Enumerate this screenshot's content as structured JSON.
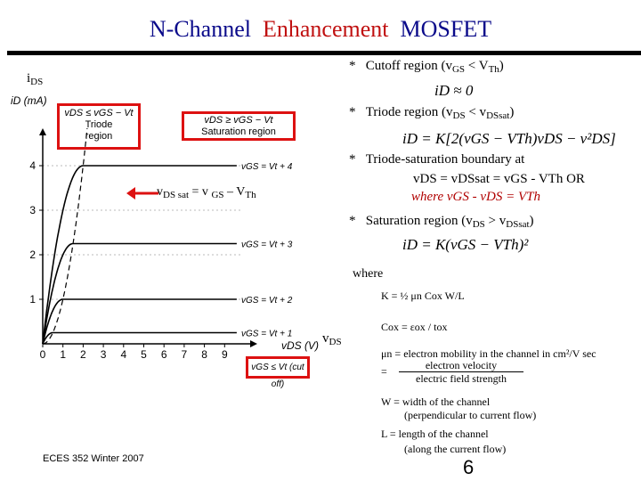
{
  "title": {
    "part1": "N-Channel",
    "part2": "Enhancement",
    "part3": "MOSFET"
  },
  "axis": {
    "y_main": "i",
    "y_main_sub": "DS",
    "y_small": "iD (mA)",
    "x_small": "vDS (V)",
    "x_main": "v",
    "x_main_sub": "DS"
  },
  "chart_data": {
    "type": "line",
    "xlim": [
      0,
      10
    ],
    "ylim": [
      0,
      4.6
    ],
    "x_ticks": [
      "0",
      "1",
      "2",
      "3",
      "4",
      "5",
      "6",
      "7",
      "8",
      "9"
    ],
    "y_ticks": [
      "1",
      "2",
      "3",
      "4"
    ],
    "series": [
      {
        "label": "vGS = Vt + 4",
        "sat": 4
      },
      {
        "label": "vGS = Vt + 3",
        "sat": 2.25
      },
      {
        "label": "vGS = Vt + 2",
        "sat": 1
      },
      {
        "label": "vGS = Vt + 1",
        "sat": 0.25
      }
    ]
  },
  "boxes": {
    "triode": {
      "line1": "vDS ≤ vGS − Vt",
      "line2": "Triode",
      "line3": "region"
    },
    "saturation": {
      "line1": "vDS ≥ vGS − Vt",
      "line2": "Saturation region"
    },
    "cutoff": "vGS ≤ Vt (cut off)"
  },
  "boundary_label": {
    "v1": "v",
    "s1": "DS sat",
    "eq": " = v ",
    "s2": "GS",
    "rest": " – V",
    "s3": "Th"
  },
  "regions": {
    "cutoff": {
      "bullet": "*",
      "text": "Cutoff  region  (v",
      "sub1": "GS",
      "mid": " < V",
      "sub2": "Th",
      "end": ")",
      "eq": "iD ≈ 0"
    },
    "triode": {
      "bullet": "*",
      "text": "Triode  region  (v",
      "sub1": "DS",
      "mid": " < v",
      "sub2": "DSsat",
      "end": ")",
      "eq": "iD = K[2(vGS − VTh)vDS − v²DS]"
    },
    "boundary": {
      "bullet": "*",
      "line1": "Triode-saturation  boundary  at",
      "line2": "vDS = vDSsat = vGS - VTh  OR",
      "line3": "where  vGS - vDS = VTh"
    },
    "saturation": {
      "bullet": "*",
      "text": "Saturation  region  (v",
      "sub1": "DS",
      "mid": " > v",
      "sub2": "DSsat",
      "end": ")",
      "eq": "iD = K(vGS − VTh)²"
    }
  },
  "where": {
    "label": "where",
    "k": "K = ½ μn Cox W/L",
    "cox": "Cox = εox / tox",
    "mu1": "μn = electron mobility in the channel in cm²/V sec",
    "mu2_num": "electron velocity",
    "mu2_den": "electric field strength",
    "w1": "W = width of the channel",
    "w2": "(perpendicular to current flow)",
    "l1": "L = length of the channel",
    "l2": "(along the current flow)"
  },
  "footer": "ECES 352  Winter 2007",
  "page": "6"
}
